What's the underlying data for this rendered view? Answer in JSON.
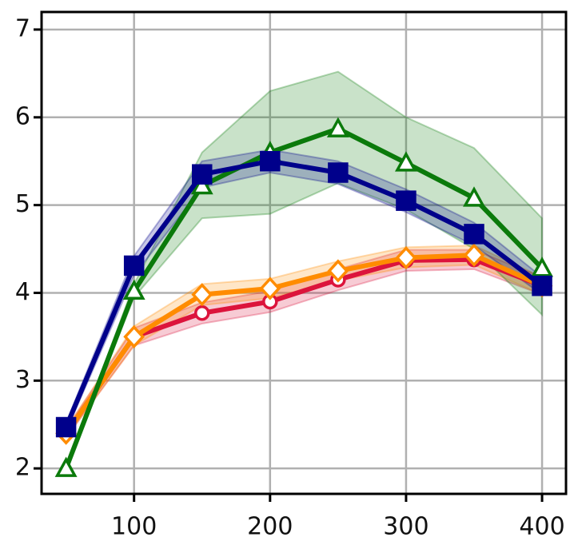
{
  "chart_data": {
    "type": "line",
    "x": [
      50,
      100,
      150,
      200,
      250,
      300,
      350,
      400
    ],
    "xlim": [
      32,
      417.6
    ],
    "xticks": [
      100,
      200,
      300,
      400
    ],
    "ylim": [
      1.71,
      7.2
    ],
    "yticks": [
      2,
      3,
      4,
      5,
      6,
      7
    ],
    "grid": true,
    "series": [
      {
        "color": "#dc143c",
        "marker": "circle",
        "filled": false,
        "values": [
          2.4,
          3.5,
          3.77,
          3.9,
          4.15,
          4.37,
          4.38,
          4.08
        ],
        "lower": [
          2.35,
          3.4,
          3.65,
          3.78,
          4.03,
          4.25,
          4.27,
          3.98
        ],
        "upper": [
          2.45,
          3.6,
          3.89,
          4.02,
          4.27,
          4.49,
          4.49,
          4.18
        ]
      },
      {
        "color": "#ff8c00",
        "marker": "diamond",
        "filled": false,
        "values": [
          2.4,
          3.5,
          3.98,
          4.05,
          4.25,
          4.4,
          4.43,
          4.08
        ],
        "lower": [
          2.35,
          3.4,
          3.86,
          3.94,
          4.14,
          4.29,
          4.32,
          3.98
        ],
        "upper": [
          2.45,
          3.62,
          4.1,
          4.16,
          4.36,
          4.52,
          4.54,
          4.18
        ]
      },
      {
        "color": "#0b7a0b",
        "marker": "triangle",
        "filled": false,
        "values": [
          2.0,
          4.02,
          5.22,
          5.6,
          5.87,
          5.48,
          5.08,
          4.28
        ],
        "lower": [
          2.0,
          3.95,
          4.85,
          4.9,
          5.25,
          4.95,
          4.5,
          3.75
        ],
        "upper": [
          2.0,
          4.1,
          5.6,
          6.3,
          6.52,
          6.0,
          5.65,
          4.85
        ]
      },
      {
        "color": "#00008b",
        "marker": "square",
        "filled": true,
        "values": [
          2.47,
          4.31,
          5.35,
          5.5,
          5.37,
          5.05,
          4.67,
          4.08
        ],
        "lower": [
          2.42,
          4.2,
          5.2,
          5.37,
          5.24,
          4.92,
          4.54,
          3.98
        ],
        "upper": [
          2.52,
          4.42,
          5.5,
          5.63,
          5.5,
          5.18,
          4.8,
          4.18
        ]
      }
    ]
  }
}
